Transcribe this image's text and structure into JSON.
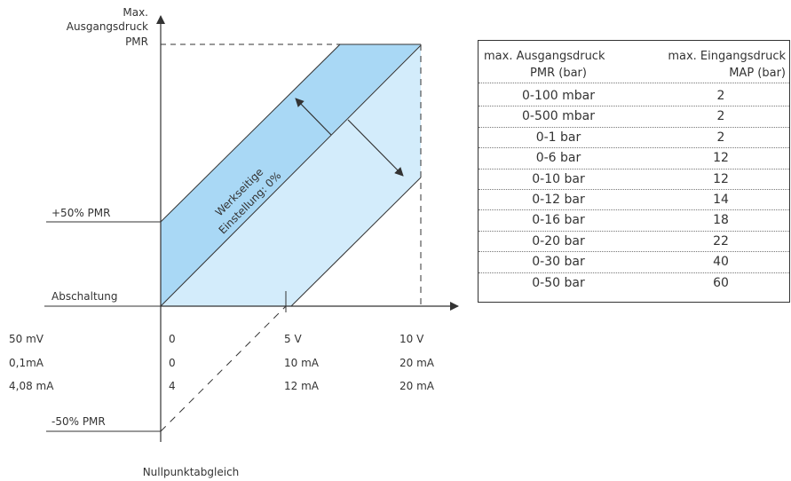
{
  "diagram": {
    "y_axis_label": [
      "Max.",
      "Ausgangsdruck",
      "PMR"
    ],
    "level_plus": "+50% PMR",
    "level_zero": "Abschaltung",
    "level_minus": "-50% PMR",
    "bottom_label": "Nullpunktabgleich",
    "band_text": [
      "Werkseitige",
      "Einstellung: 0%"
    ],
    "signal_rows": [
      [
        "50 mV",
        "0",
        "5 V",
        "10 V"
      ],
      [
        "0,1mA",
        "0",
        "10 mA",
        "20 mA"
      ],
      [
        "4,08 mA",
        "4",
        "12 mA",
        "20 mA"
      ]
    ],
    "colors": {
      "band_dark": "#a9d8f5",
      "band_light": "#d3ecfb",
      "line": "#333333"
    }
  },
  "table": {
    "header": {
      "col1": [
        "max. Ausgangsdruck",
        "PMR (bar)"
      ],
      "col2": [
        "max. Eingangsdruck",
        "MAP (bar)"
      ]
    },
    "rows": [
      [
        "0-100 mbar",
        "2"
      ],
      [
        "0-500 mbar",
        "2"
      ],
      [
        "0-1 bar",
        "2"
      ],
      [
        "0-6 bar",
        "12"
      ],
      [
        "0-10 bar",
        "12"
      ],
      [
        "0-12 bar",
        "14"
      ],
      [
        "0-16 bar",
        "18"
      ],
      [
        "0-20 bar",
        "22"
      ],
      [
        "0-30 bar",
        "40"
      ],
      [
        "0-50 bar",
        "60"
      ]
    ]
  }
}
